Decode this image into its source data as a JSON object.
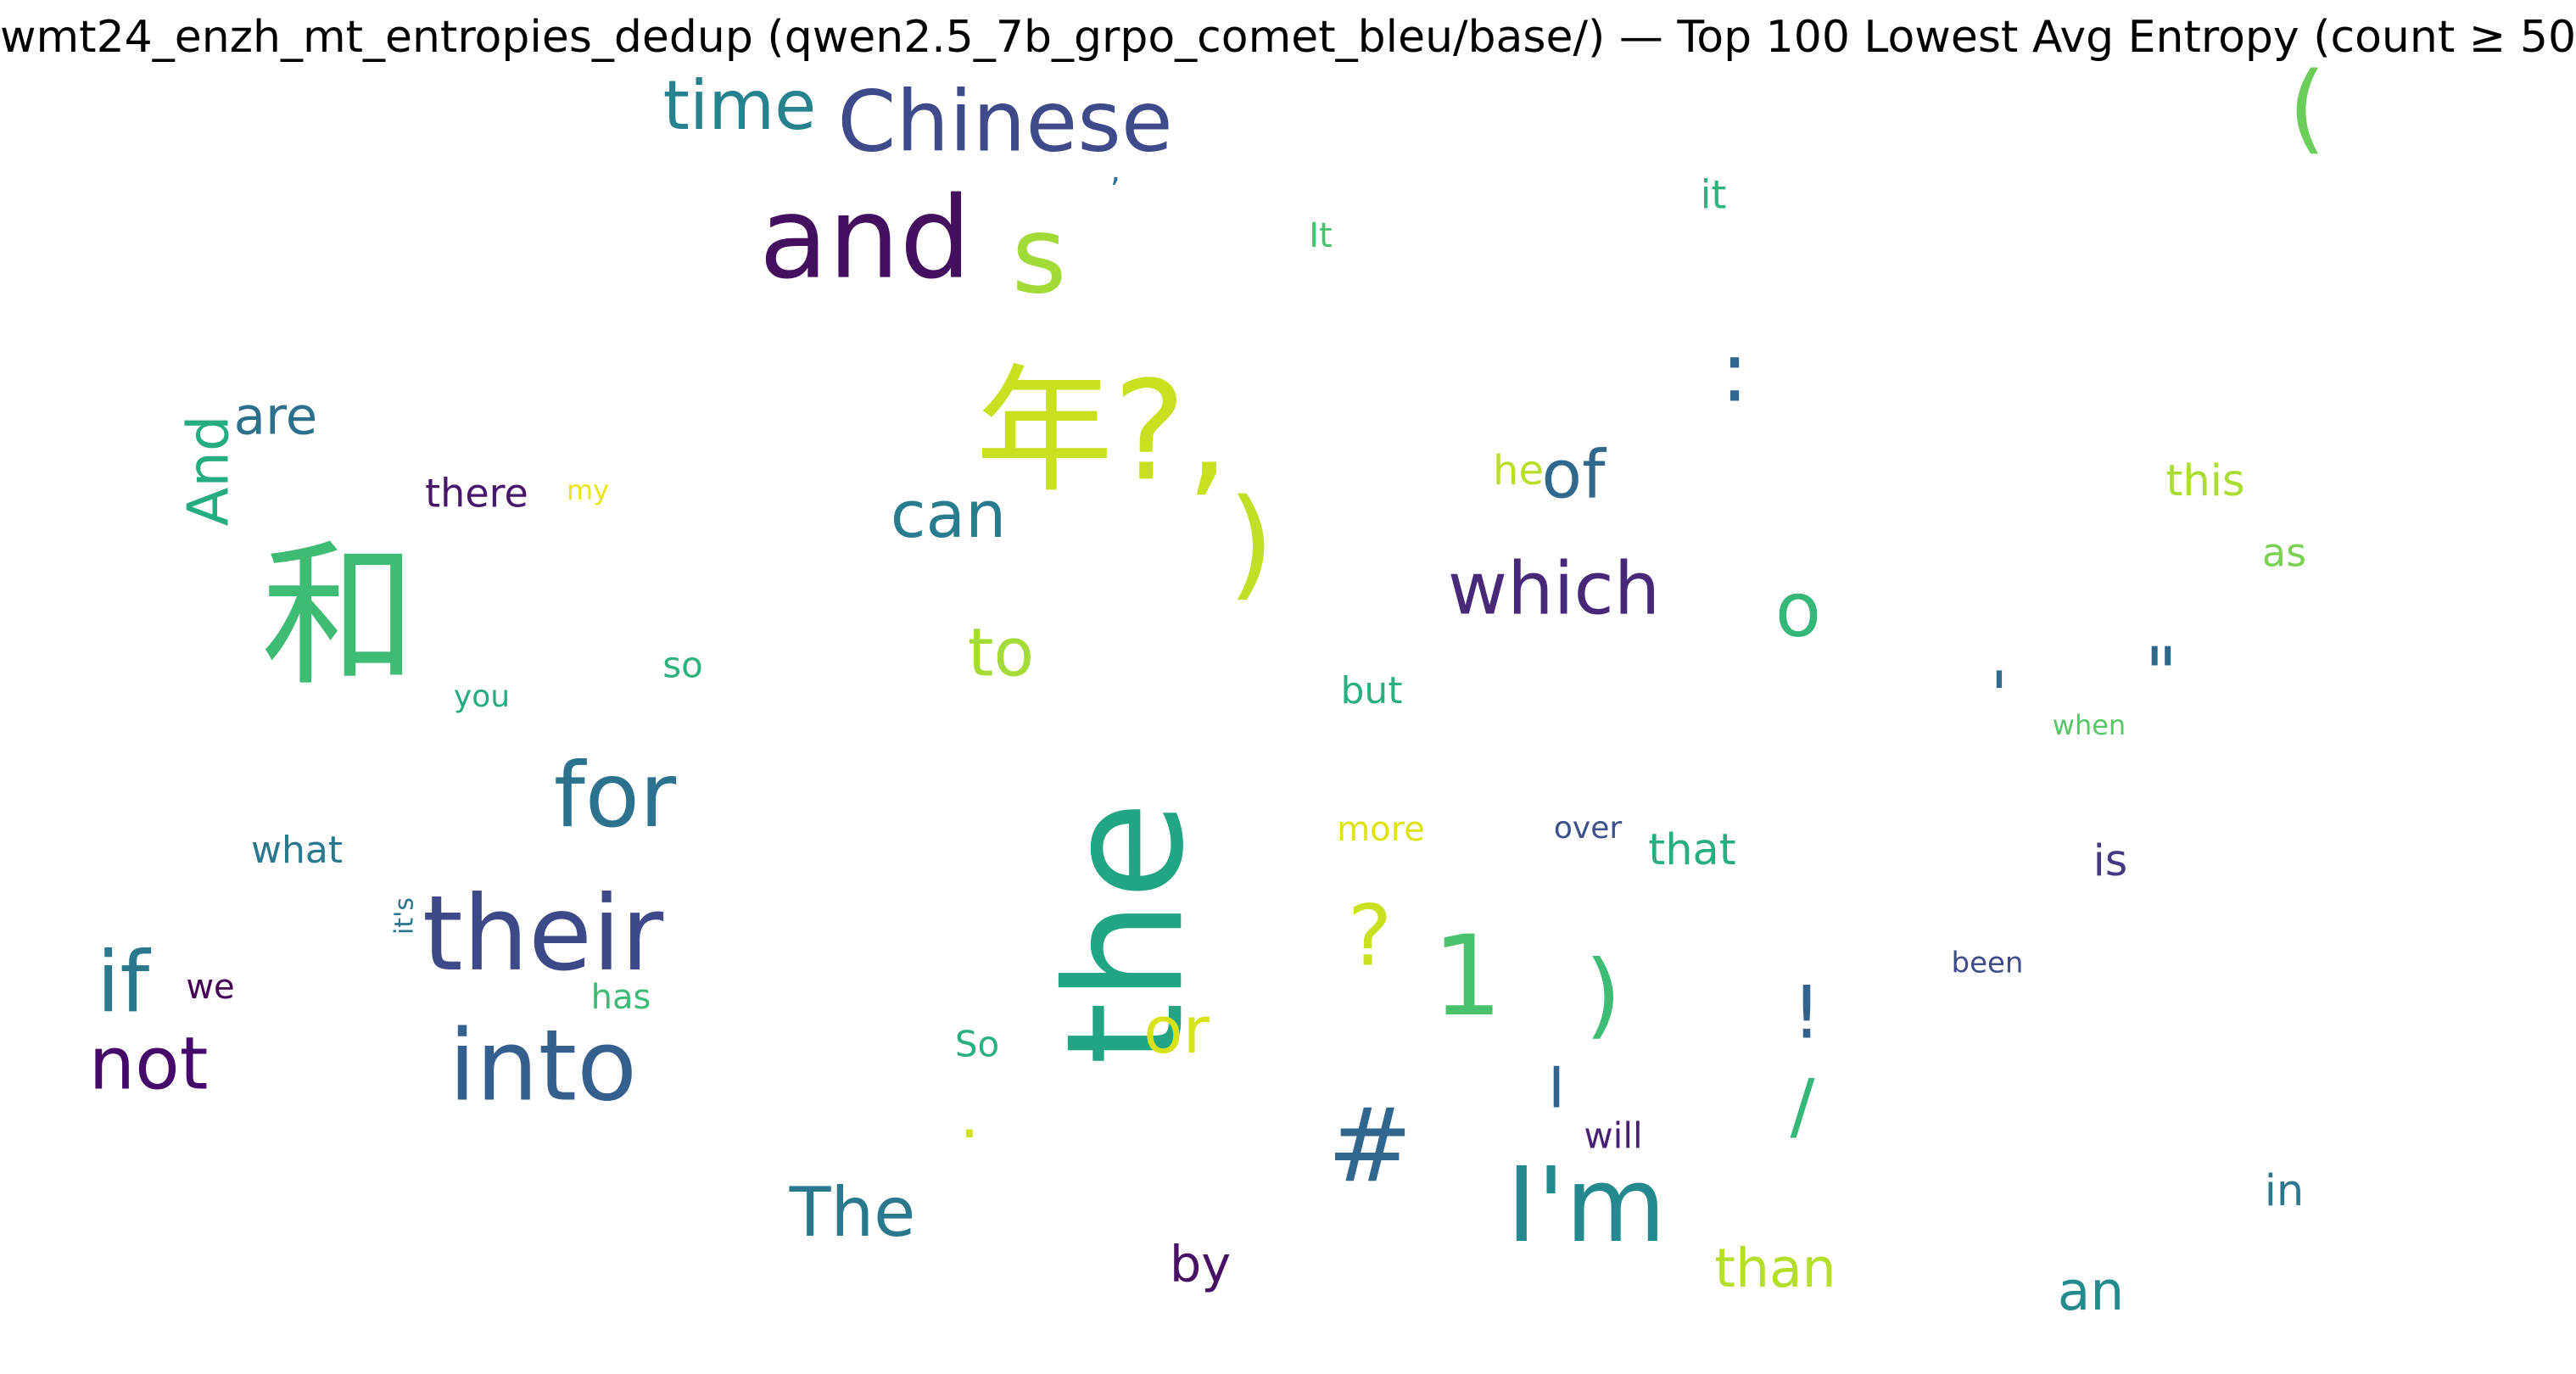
{
  "chart_data": {
    "type": "wordcloud",
    "title": "wmt24_enzh_mt_entropies_dedup (qwen2.5_7b_grpo_comet_bleu/base/) — Top 100 Lowest Avg Entropy (count ≥ 50",
    "colormap": "viridis",
    "words": [
      {
        "text": "the",
        "weight": 1.0,
        "color": "#21a585",
        "rotate": true
      },
      {
        "text": "和",
        "weight": 0.97,
        "color": "#3fbc73",
        "rotate": false
      },
      {
        "text": "年?,",
        "weight": 0.85,
        "color": "#c8e020",
        "rotate": false
      },
      {
        "text": "and",
        "weight": 0.7,
        "color": "#440f5e",
        "rotate": false
      },
      {
        "text": "s",
        "weight": 0.66,
        "color": "#a2da37",
        "rotate": false
      },
      {
        "text": "1",
        "weight": 0.69,
        "color": "#4ac16d",
        "rotate": false
      },
      {
        "text": "their",
        "weight": 0.64,
        "color": "#3e4989",
        "rotate": false
      },
      {
        "text": "I'm",
        "weight": 0.64,
        "color": "#23898e",
        "rotate": false
      },
      {
        "text": "into",
        "weight": 0.61,
        "color": "#355f8d",
        "rotate": false
      },
      {
        "text": ")",
        "weight": 0.74,
        "color": "#c0df25",
        "rotate": false
      },
      {
        "text": "#",
        "weight": 0.63,
        "color": "#31668e",
        "rotate": false
      },
      {
        "text": "for",
        "weight": 0.55,
        "color": "#2c728e",
        "rotate": false
      },
      {
        "text": "Chinese",
        "weight": 0.52,
        "color": "#3e4a89",
        "rotate": false
      },
      {
        "text": "(",
        "weight": 0.6,
        "color": "#6ccd5a",
        "rotate": false
      },
      {
        "text": "which",
        "weight": 0.45,
        "color": "#482878",
        "rotate": false
      },
      {
        "text": ":",
        "weight": 0.52,
        "color": "#31668e",
        "rotate": false
      },
      {
        "text": "if",
        "weight": 0.52,
        "color": "#2a788e",
        "rotate": false
      },
      {
        "text": "not",
        "weight": 0.45,
        "color": "#450a69",
        "rotate": false
      },
      {
        "text": ")",
        "weight": 0.58,
        "color": "#3dbc74",
        "rotate": false
      },
      {
        "text": "The",
        "weight": 0.42,
        "color": "#2a788e",
        "rotate": false
      },
      {
        "text": "time",
        "weight": 0.42,
        "color": "#26828e",
        "rotate": false
      },
      {
        "text": "?",
        "weight": 0.52,
        "color": "#c8e020",
        "rotate": false
      },
      {
        "text": "can",
        "weight": 0.4,
        "color": "#287c8e",
        "rotate": false
      },
      {
        "text": "to",
        "weight": 0.41,
        "color": "#a5db36",
        "rotate": false
      },
      {
        "text": "or",
        "weight": 0.4,
        "color": "#d8e219",
        "rotate": false
      },
      {
        "text": "of",
        "weight": 0.41,
        "color": "#31688e",
        "rotate": false
      },
      {
        "text": "o",
        "weight": 0.47,
        "color": "#35b779",
        "rotate": false
      },
      {
        "text": "\"",
        "weight": 0.44,
        "color": "#31688e",
        "rotate": false
      },
      {
        "text": "!",
        "weight": 0.45,
        "color": "#33638d",
        "rotate": false
      },
      {
        "text": "/",
        "weight": 0.45,
        "color": "#35b779",
        "rotate": false
      },
      {
        "text": "And",
        "weight": 0.35,
        "color": "#25ac82",
        "rotate": true
      },
      {
        "text": "than",
        "weight": 0.33,
        "color": "#b5de2b",
        "rotate": false
      },
      {
        "text": "an",
        "weight": 0.33,
        "color": "#238a8d",
        "rotate": false
      },
      {
        "text": "are",
        "weight": 0.32,
        "color": "#2d708e",
        "rotate": false
      },
      {
        "text": "by",
        "weight": 0.31,
        "color": "#471164",
        "rotate": false
      },
      {
        "text": "I",
        "weight": 0.35,
        "color": "#33638d",
        "rotate": false
      },
      {
        "text": ".",
        "weight": 0.4,
        "color": "#d0e11c",
        "rotate": false
      },
      {
        "text": "'",
        "weight": 0.4,
        "color": "#31688e",
        "rotate": false
      },
      {
        "text": "that",
        "weight": 0.27,
        "color": "#27ad81",
        "rotate": false
      },
      {
        "text": "is",
        "weight": 0.27,
        "color": "#443983",
        "rotate": false
      },
      {
        "text": "this",
        "weight": 0.27,
        "color": "#aadc32",
        "rotate": false
      },
      {
        "text": "in",
        "weight": 0.27,
        "color": "#2a778e",
        "rotate": false
      },
      {
        "text": "there",
        "weight": 0.24,
        "color": "#481769",
        "rotate": false
      },
      {
        "text": "what",
        "weight": 0.23,
        "color": "#2a788e",
        "rotate": false
      },
      {
        "text": "it",
        "weight": 0.24,
        "color": "#2eb37c",
        "rotate": false
      },
      {
        "text": "as",
        "weight": 0.24,
        "color": "#7ad151",
        "rotate": false
      },
      {
        "text": "he",
        "weight": 0.25,
        "color": "#b8de29",
        "rotate": false
      },
      {
        "text": "but",
        "weight": 0.23,
        "color": "#2ab07f",
        "rotate": false
      },
      {
        "text": "will",
        "weight": 0.22,
        "color": "#482173",
        "rotate": false
      },
      {
        "text": "so",
        "weight": 0.22,
        "color": "#2db27d",
        "rotate": false
      },
      {
        "text": "So",
        "weight": 0.22,
        "color": "#2ab07f",
        "rotate": false
      },
      {
        "text": "It",
        "weight": 0.21,
        "color": "#4ac16d",
        "rotate": false
      },
      {
        "text": "has",
        "weight": 0.21,
        "color": "#3bbb75",
        "rotate": false
      },
      {
        "text": "we",
        "weight": 0.21,
        "color": "#440154",
        "rotate": false
      },
      {
        "text": "more",
        "weight": 0.21,
        "color": "#dde318",
        "rotate": false
      },
      {
        "text": "over",
        "weight": 0.19,
        "color": "#3b518b",
        "rotate": false
      },
      {
        "text": "been",
        "weight": 0.18,
        "color": "#3e4c8a",
        "rotate": false
      },
      {
        "text": "you",
        "weight": 0.19,
        "color": "#25ab82",
        "rotate": false
      },
      {
        "text": "when",
        "weight": 0.17,
        "color": "#56c667",
        "rotate": false
      },
      {
        "text": "my",
        "weight": 0.17,
        "color": "#eae51a",
        "rotate": false
      },
      {
        "text": "it's",
        "weight": 0.16,
        "color": "#2c738e",
        "rotate": true
      },
      {
        "text": ",",
        "weight": 0.2,
        "color": "#2c728e",
        "rotate": false
      }
    ]
  }
}
